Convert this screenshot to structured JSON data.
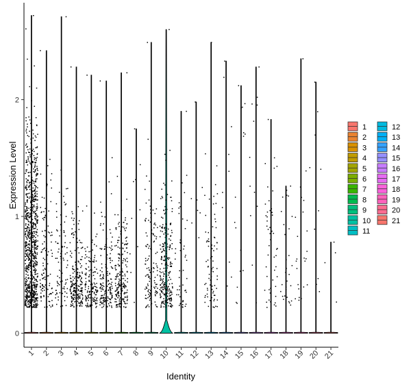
{
  "chart_data": {
    "type": "violin",
    "title": "",
    "xlabel": "Identity",
    "ylabel": "Expression Level",
    "ylim": [
      -0.12,
      2.83
    ],
    "yticks": [
      0,
      1,
      2
    ],
    "grid": false,
    "legend_position": "right",
    "legend_columns": 2,
    "categories": [
      "1",
      "2",
      "3",
      "4",
      "5",
      "6",
      "7",
      "8",
      "9",
      "10",
      "11",
      "12",
      "13",
      "14",
      "15",
      "16",
      "17",
      "18",
      "19",
      "20",
      "21"
    ],
    "colors": [
      "#F8766D",
      "#EA8331",
      "#D89000",
      "#C09B00",
      "#A3A500",
      "#7CAE00",
      "#39B600",
      "#00BB4E",
      "#00BF7D",
      "#00C1A3",
      "#00BFC4",
      "#00BAE0",
      "#00B0F6",
      "#35A2FF",
      "#9590FF",
      "#C77CFF",
      "#E76BF3",
      "#FA62DB",
      "#FF62BC",
      "#FF6C91",
      "#F8766D"
    ],
    "max_values": [
      2.72,
      2.42,
      2.71,
      2.28,
      2.21,
      2.16,
      2.23,
      1.75,
      2.49,
      2.6,
      1.9,
      1.98,
      2.49,
      2.33,
      2.12,
      2.28,
      1.83,
      1.26,
      2.35,
      2.15,
      0.78
    ],
    "point_counts": [
      900,
      120,
      90,
      220,
      160,
      170,
      220,
      10,
      130,
      260,
      50,
      8,
      80,
      10,
      16,
      12,
      50,
      30,
      24,
      10,
      4
    ],
    "point_centers": [
      0.75,
      0.55,
      0.55,
      0.35,
      0.35,
      0.4,
      0.4,
      1.0,
      0.55,
      0.5,
      0.6,
      1.0,
      0.55,
      1.2,
      1.0,
      1.4,
      0.65,
      0.7,
      0.6,
      1.2,
      0.5
    ],
    "violin_peak": {
      "category": "10",
      "height": 0.11
    }
  }
}
